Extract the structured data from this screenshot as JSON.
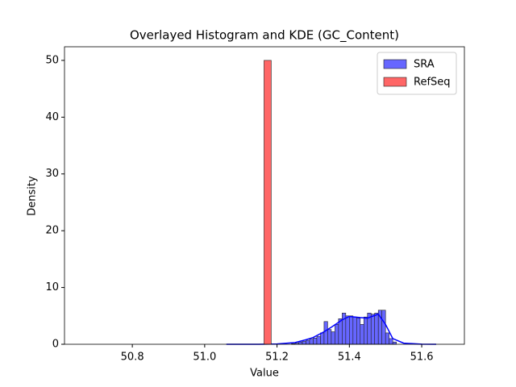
{
  "chart_data": {
    "type": "histogram",
    "title": "Overlayed Histogram and KDE (GC_Content)",
    "x_label": "Value",
    "y_label": "Density",
    "xlim": [
      50.6125,
      51.718
    ],
    "ylim": [
      0,
      52.4
    ],
    "xticks": [
      50.8,
      {
        "value": 51,
        "label": "51.0"
      },
      51.2,
      51.4,
      51.6
    ],
    "yticks": [
      0,
      10,
      20,
      30,
      40,
      50
    ],
    "legend": "upper right",
    "series": [
      {
        "name": "SRA",
        "color": "#6666ff",
        "line_color": "#0000ff",
        "bins": [
          51.24,
          51.25,
          51.26,
          51.27,
          51.28,
          51.29,
          51.3,
          51.31,
          51.32,
          51.33,
          51.34,
          51.35,
          51.36,
          51.37,
          51.38,
          51.39,
          51.4,
          51.41,
          51.42,
          51.43,
          51.44,
          51.45,
          51.46,
          51.47,
          51.48,
          51.49,
          51.5,
          51.51,
          51.52,
          51.53
        ],
        "values": [
          0.1,
          0.2,
          0.4,
          0.5,
          0.7,
          0.9,
          1.1,
          1.4,
          2.0,
          4.0,
          2.6,
          2.2,
          3.5,
          4.5,
          5.5,
          5.0,
          5.0,
          4.8,
          4.6,
          3.5,
          4.8,
          5.5,
          5.3,
          5.5,
          6.0,
          6.0,
          2.0,
          1.0,
          0.4
        ],
        "kde": {
          "x": [
            51.06,
            51.1,
            51.15,
            51.2,
            51.25,
            51.28,
            51.3,
            51.33,
            51.35,
            51.38,
            51.4,
            51.43,
            51.45,
            51.48,
            51.5,
            51.52,
            51.55,
            51.6,
            51.64
          ],
          "y": [
            0,
            0,
            0,
            0.05,
            0.3,
            0.8,
            1.2,
            2.2,
            3.0,
            4.3,
            4.9,
            4.7,
            4.6,
            5.3,
            3.5,
            1.0,
            0.2,
            0.02,
            0
          ]
        }
      },
      {
        "name": "RefSeq",
        "color": "#ff6666",
        "bins": [
          51.164,
          51.184
        ],
        "values": [
          50
        ]
      }
    ]
  }
}
